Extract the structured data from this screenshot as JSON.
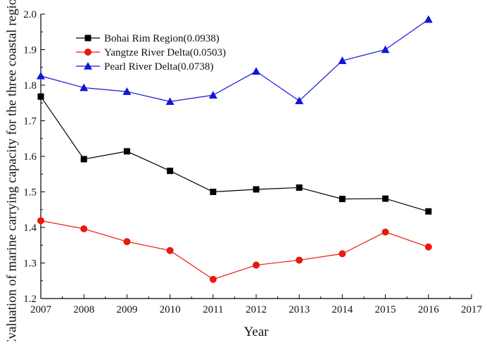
{
  "chart_data": {
    "type": "line",
    "title": "",
    "xlabel": "Year",
    "ylabel": "Evaluation of marine carrying capacity for the three coastal regions",
    "xlim": [
      2007,
      2017
    ],
    "ylim": [
      1.2,
      2.0
    ],
    "x_ticks": [
      "2007",
      "2008",
      "2009",
      "2010",
      "2011",
      "2012",
      "2013",
      "2014",
      "2015",
      "2016",
      "2017"
    ],
    "y_ticks": [
      "1.2",
      "1.3",
      "1.4",
      "1.5",
      "1.6",
      "1.7",
      "1.8",
      "1.9",
      "2.0"
    ],
    "grid": false,
    "legend_position": "top-left",
    "series": [
      {
        "name": "Bohai Rim Region(0.0938)",
        "color": "#000000",
        "marker": "square",
        "x": [
          2007,
          2008,
          2009,
          2010,
          2011,
          2012,
          2013,
          2014,
          2015,
          2016
        ],
        "values": [
          1.768,
          1.592,
          1.614,
          1.559,
          1.5,
          1.507,
          1.512,
          1.48,
          1.481,
          1.445
        ]
      },
      {
        "name": "Yangtze River Delta(0.0503)",
        "color": "#e8190f",
        "marker": "circle",
        "x": [
          2007,
          2008,
          2009,
          2010,
          2011,
          2012,
          2013,
          2014,
          2015,
          2016
        ],
        "values": [
          1.419,
          1.396,
          1.36,
          1.335,
          1.254,
          1.294,
          1.308,
          1.326,
          1.387,
          1.345
        ]
      },
      {
        "name": "Pearl River Delta(0.0738)",
        "color": "#1515d8",
        "marker": "triangle",
        "x": [
          2007,
          2008,
          2009,
          2010,
          2011,
          2012,
          2013,
          2014,
          2015,
          2016
        ],
        "values": [
          1.826,
          1.793,
          1.782,
          1.754,
          1.772,
          1.839,
          1.756,
          1.869,
          1.9,
          1.985
        ]
      }
    ]
  }
}
